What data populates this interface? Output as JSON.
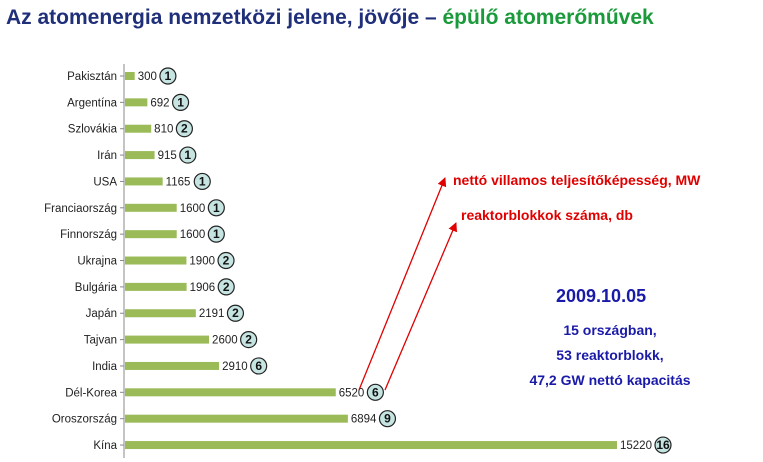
{
  "title": {
    "part1": "Az atomenergia nemzetközi jelene, jövője – ",
    "part2": "épülő atomerőművek"
  },
  "legend": {
    "capacity": "nettó villamos teljesítőképesség, MW",
    "blocks": "reaktorblokkok száma, db"
  },
  "summary": {
    "date": "2009.10.05",
    "countries": "15 országban,",
    "reactors": "53 reaktorblokk,",
    "capacity": "47,2 GW nettó kapacitás"
  },
  "colors": {
    "bar": "#9bbb59",
    "badge": "#c6e4e1",
    "arrow": "#e00000",
    "title_main": "#1f2f7a",
    "title_accent": "#1a9a3a"
  },
  "chart_data": {
    "type": "bar",
    "orientation": "horizontal",
    "categories": [
      "Pakisztán",
      "Argentína",
      "Szlovákia",
      "Irán",
      "USA",
      "Franciaország",
      "Finnország",
      "Ukrajna",
      "Bulgária",
      "Japán",
      "Tajvan",
      "India",
      "Dél-Korea",
      "Oroszország",
      "Kína"
    ],
    "series": [
      {
        "name": "nettó villamos teljesítőképesség, MW",
        "values": [
          300,
          692,
          810,
          915,
          1165,
          1600,
          1600,
          1900,
          1906,
          2191,
          2600,
          2910,
          6520,
          6894,
          15220
        ]
      },
      {
        "name": "reaktorblokkok száma, db",
        "values": [
          1,
          1,
          2,
          1,
          1,
          1,
          1,
          2,
          2,
          2,
          2,
          6,
          6,
          9,
          16
        ]
      }
    ],
    "value_labels": [
      "300",
      "692",
      "810",
      "915",
      "1165",
      "1600",
      "1600",
      "1900",
      "1906",
      "2191",
      "2600",
      "2910",
      "6520",
      "6894",
      "15220"
    ],
    "count_labels": [
      "1",
      "1",
      "2",
      "1",
      "1",
      "1",
      "1",
      "2",
      "2",
      "2",
      "2",
      "6",
      "6",
      "9",
      "16"
    ],
    "xlim": [
      0,
      16000
    ],
    "grid": false,
    "legend": "right"
  }
}
